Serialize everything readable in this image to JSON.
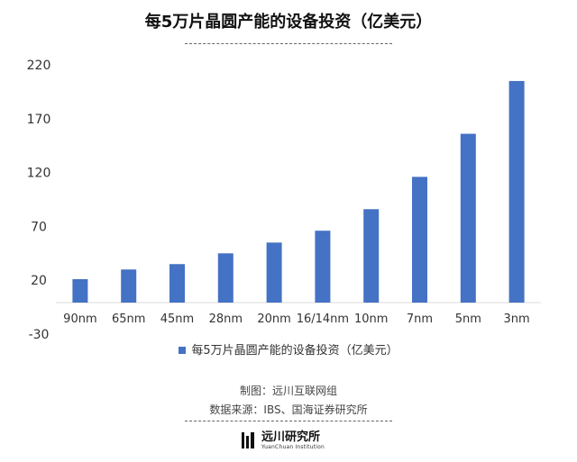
{
  "chart_data": {
    "type": "bar",
    "title": "每5万片晶圆产能的设备投资（亿美元）",
    "categories": [
      "90nm",
      "65nm",
      "45nm",
      "28nm",
      "20nm",
      "16/14nm",
      "10nm",
      "7nm",
      "5nm",
      "3nm"
    ],
    "series": [
      {
        "name": "每5万片晶圆产能的设备投资（亿美元）",
        "values": [
          21,
          30,
          35,
          45,
          55,
          66,
          86,
          116,
          156,
          205
        ],
        "color": "#4472C4"
      }
    ],
    "ylim": [
      -30,
      220
    ],
    "yticks": [
      220,
      170,
      120,
      70,
      20,
      -30
    ],
    "grid": false,
    "legend": "bottom"
  },
  "source": {
    "maker": "制图：远川互联网组",
    "data_source": "数据来源：IBS、国海证券研究所"
  },
  "logo": {
    "name_cn": "远川研究所",
    "name_en": "YuanChuan Institution"
  }
}
